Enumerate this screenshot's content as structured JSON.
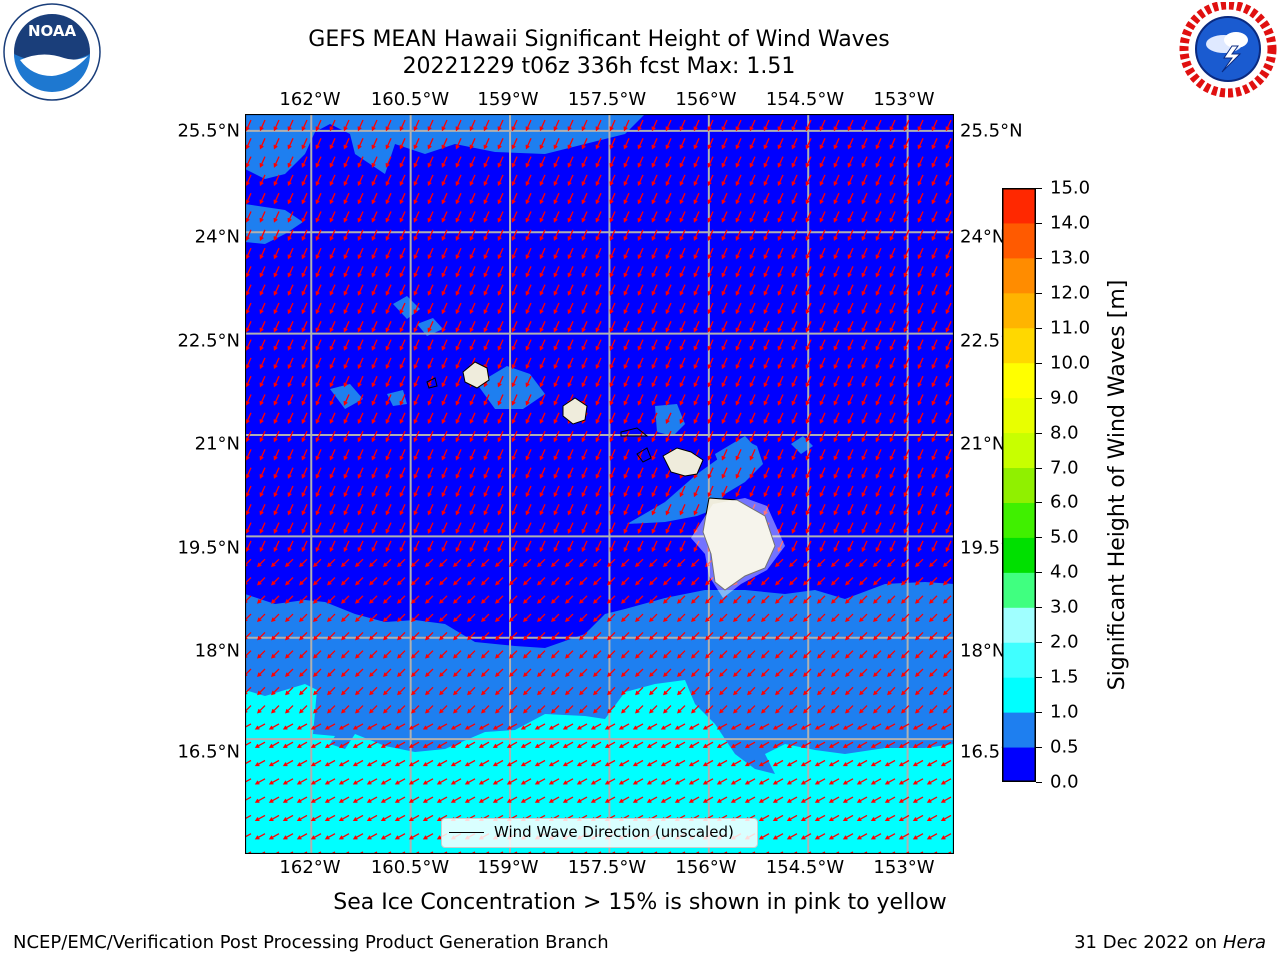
{
  "title": {
    "line1": "GEFS MEAN Hawaii Significant Height of Wind Waves",
    "line2": "20221229 t06z 336h fcst   Max: 1.51"
  },
  "logos": {
    "noaa": {
      "text": "NOAA",
      "ring_text": "NATIONAL OCEANIC AND ATMOSPHERIC ADMINISTRATION · U.S. DEPARTMENT OF COMMERCE"
    },
    "nws": {
      "ring_text": "NATIONAL WEATHER SERVICE"
    }
  },
  "map": {
    "lon_ticks": [
      "162°W",
      "160.5°W",
      "159°W",
      "157.5°W",
      "156°W",
      "154.5°W",
      "153°W"
    ],
    "lon_values": [
      -162,
      -160.5,
      -159,
      -157.5,
      -156,
      -154.5,
      -153
    ],
    "lat_ticks": [
      "25.5°N",
      "24°N",
      "22.5°N",
      "21°N",
      "19.5°N",
      "18°N",
      "16.5°N"
    ],
    "lat_values": [
      25.5,
      24,
      22.5,
      21,
      19.5,
      18,
      16.5
    ],
    "lon_range": [
      -163,
      -152.3
    ],
    "lat_range": [
      14.8,
      25.75
    ],
    "grid": true,
    "arrow_color": "#ff0000",
    "land_color": "#efecdc",
    "legend": {
      "label": "Wind Wave Direction (unscaled)",
      "placement": "bottom-center"
    }
  },
  "colorbar": {
    "label": "Significant Height of Wind Waves [m]",
    "ticks": [
      "15.0",
      "14.0",
      "13.0",
      "12.0",
      "11.0",
      "10.0",
      "9.0",
      "8.0",
      "7.0",
      "6.0",
      "5.0",
      "4.0",
      "3.0",
      "2.0",
      "1.5",
      "1.0",
      "0.5",
      "0.0"
    ],
    "levels": [
      0.0,
      0.5,
      1.0,
      1.5,
      2.0,
      3.0,
      4.0,
      5.0,
      6.0,
      7.0,
      8.0,
      9.0,
      10.0,
      11.0,
      12.0,
      13.0,
      14.0,
      15.0
    ],
    "colors": [
      "#0000ff",
      "#1e7ff0",
      "#00ffff",
      "#40ffff",
      "#a0ffff",
      "#40ff80",
      "#00e000",
      "#40f000",
      "#90f000",
      "#c8ff00",
      "#e8ff00",
      "#ffff00",
      "#ffd800",
      "#ffb400",
      "#ff8c00",
      "#ff5a00",
      "#ff2800"
    ]
  },
  "note": "Sea Ice Concentration > 15% is shown in pink to yellow",
  "footer": {
    "left": "NCEP/EMC/Verification Post Processing Product Generation Branch",
    "date": "31 Dec 2022 on",
    "machine": "Hera"
  }
}
